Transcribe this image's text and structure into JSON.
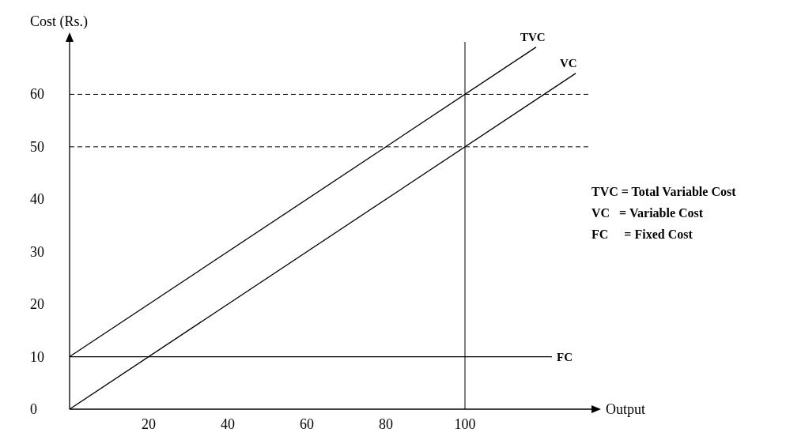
{
  "chart_data": {
    "type": "line",
    "xlabel": "Output",
    "ylabel": "Cost (Rs.)",
    "xlim": [
      0,
      132
    ],
    "ylim": [
      0,
      70
    ],
    "xticks": [
      20,
      40,
      60,
      80,
      100
    ],
    "yticks": [
      0,
      10,
      20,
      30,
      40,
      50,
      60
    ],
    "grid": false,
    "marker": "none",
    "line_style": "solid",
    "series": [
      {
        "name": "TVC",
        "color": "#000000",
        "x": [
          0,
          118
        ],
        "values": [
          10,
          69
        ]
      },
      {
        "name": "VC",
        "color": "#000000",
        "x": [
          0,
          128
        ],
        "values": [
          0,
          64
        ]
      },
      {
        "name": "FC",
        "color": "#000000",
        "x": [
          0,
          122
        ],
        "values": [
          10,
          10
        ]
      }
    ],
    "ref_lines": [
      {
        "axis": "y",
        "value": 60,
        "line_style": "dashed",
        "color": "#000000"
      },
      {
        "axis": "y",
        "value": 50,
        "line_style": "dashed",
        "color": "#000000"
      },
      {
        "axis": "x",
        "value": 100,
        "line_style": "solid",
        "color": "#000000"
      }
    ],
    "annotations": [
      "TVC = Total Variable Cost",
      "VC   = Variable Cost",
      "FC     = Fixed Cost"
    ]
  }
}
